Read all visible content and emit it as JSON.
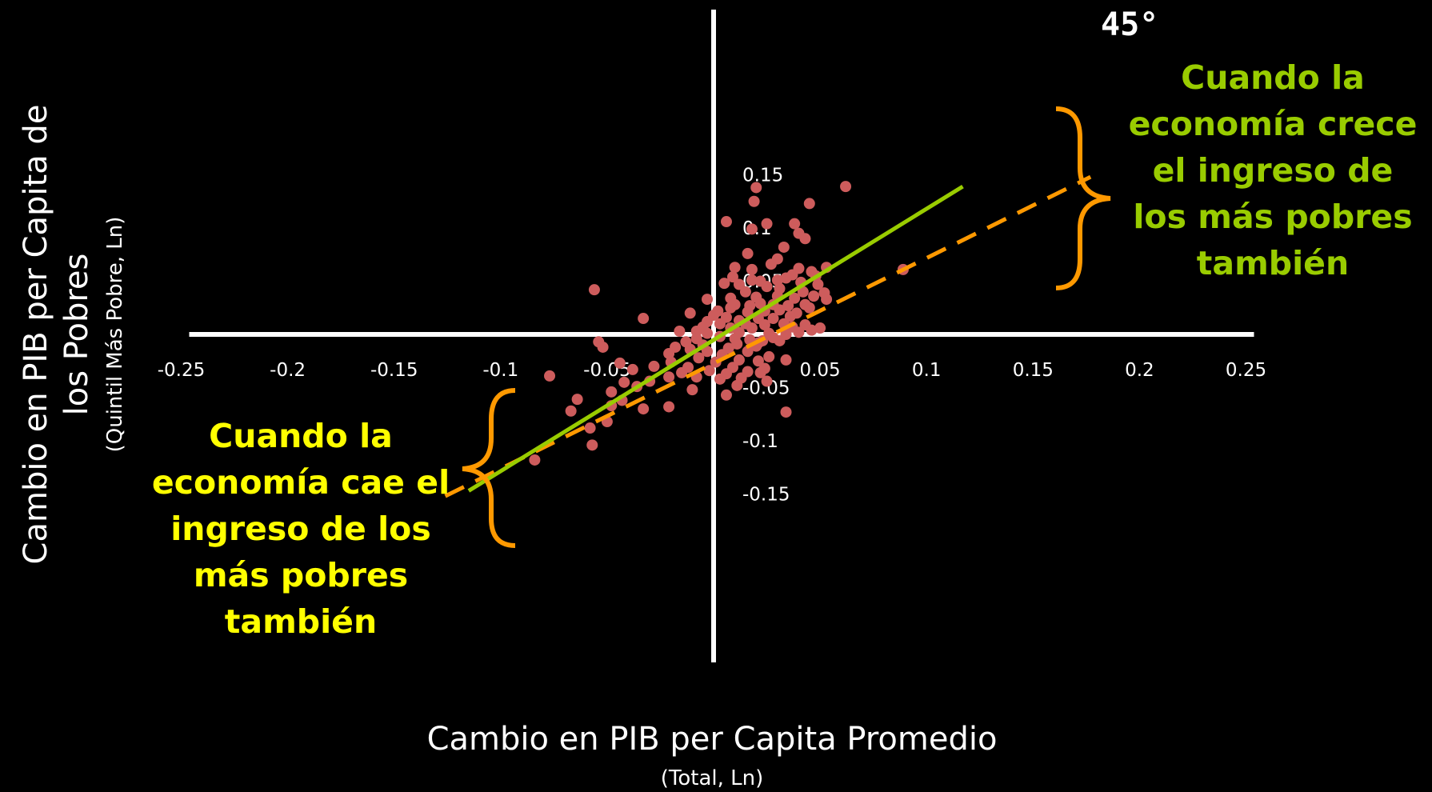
{
  "chart_data": {
    "type": "scatter",
    "title": "",
    "xlabel": "Cambio en PIB per Capita Promedio",
    "xlabel_sub": "(Total, Ln)",
    "ylabel": "Cambio en PIB per Capita de los Pobres",
    "ylabel_sub": "(Quintil Más Pobre, Ln)",
    "xlim": [
      -0.25,
      0.25
    ],
    "ylim": [
      -0.15,
      0.15
    ],
    "grid": false,
    "x_ticks": [
      "-0.25",
      "-0.2",
      "-0.15",
      "-0.1",
      "-0.05",
      "0.05",
      "0.1",
      "0.15",
      "0.2",
      "0.25"
    ],
    "y_ticks": [
      "0.15",
      "0.1",
      "0.05",
      "-0.05",
      "-0.1",
      "-0.15"
    ],
    "colors": {
      "background": "#000000",
      "points": "#cd5c5c",
      "axes": "#ffffff",
      "fit_line": "#99cc00",
      "diagonal_line": "#ff9900",
      "green_text": "#99cc00",
      "yellow_text": "#ffff00"
    },
    "fit_line": {
      "x": [
        -0.115,
        0.117
      ],
      "y": [
        -0.147,
        0.139
      ]
    },
    "diagonal_45": {
      "label": "45°",
      "x": [
        -0.126,
        0.177
      ],
      "y": [
        -0.152,
        0.148
      ]
    },
    "points": [
      [
        0.02,
        0.138
      ],
      [
        0.062,
        0.139
      ],
      [
        0.019,
        0.125
      ],
      [
        0.045,
        0.123
      ],
      [
        0.006,
        0.106
      ],
      [
        0.025,
        0.104
      ],
      [
        0.038,
        0.104
      ],
      [
        0.018,
        0.099
      ],
      [
        0.04,
        0.095
      ],
      [
        0.043,
        0.09
      ],
      [
        0.033,
        0.082
      ],
      [
        0.016,
        0.076
      ],
      [
        0.03,
        0.071
      ],
      [
        0.027,
        0.066
      ],
      [
        0.01,
        0.063
      ],
      [
        0.018,
        0.061
      ],
      [
        0.04,
        0.062
      ],
      [
        0.053,
        0.063
      ],
      [
        0.089,
        0.061
      ],
      [
        0.037,
        0.056
      ],
      [
        0.046,
        0.059
      ],
      [
        0.009,
        0.054
      ],
      [
        0.034,
        0.053
      ],
      [
        0.049,
        0.047
      ],
      [
        0.03,
        0.051
      ],
      [
        0.022,
        0.05
      ],
      [
        0.041,
        0.049
      ],
      [
        0.048,
        0.055
      ],
      [
        0.005,
        0.048
      ],
      [
        0.018,
        0.051
      ],
      [
        0.012,
        0.047
      ],
      [
        0.025,
        0.045
      ],
      [
        0.031,
        0.043
      ],
      [
        0.052,
        0.039
      ],
      [
        0.042,
        0.04
      ],
      [
        0.015,
        0.04
      ],
      [
        -0.056,
        0.042
      ],
      [
        -0.003,
        0.033
      ],
      [
        0.008,
        0.034
      ],
      [
        0.02,
        0.035
      ],
      [
        0.03,
        0.036
      ],
      [
        0.038,
        0.034
      ],
      [
        0.047,
        0.036
      ],
      [
        0.053,
        0.033
      ],
      [
        0.01,
        0.028
      ],
      [
        0.017,
        0.027
      ],
      [
        0.022,
        0.029
      ],
      [
        0.028,
        0.028
      ],
      [
        0.035,
        0.027
      ],
      [
        0.043,
        0.028
      ],
      [
        -0.011,
        0.02
      ],
      [
        0.002,
        0.022
      ],
      [
        0.008,
        0.025
      ],
      [
        0.016,
        0.021
      ],
      [
        0.024,
        0.022
      ],
      [
        0.031,
        0.023
      ],
      [
        0.039,
        0.02
      ],
      [
        0.045,
        0.025
      ],
      [
        0.0,
        0.018
      ],
      [
        0.006,
        0.016
      ],
      [
        0.012,
        0.013
      ],
      [
        0.021,
        0.015
      ],
      [
        0.028,
        0.015
      ],
      [
        0.036,
        0.017
      ],
      [
        -0.003,
        0.012
      ],
      [
        -0.033,
        0.015
      ],
      [
        0.003,
        0.01
      ],
      [
        0.015,
        0.01
      ],
      [
        0.024,
        0.009
      ],
      [
        0.033,
        0.01
      ],
      [
        0.043,
        0.009
      ],
      [
        -0.005,
        0.007
      ],
      [
        0.008,
        0.006
      ],
      [
        0.018,
        0.006
      ],
      [
        0.037,
        0.007
      ],
      [
        0.046,
        0.004
      ],
      [
        0.05,
        0.006
      ],
      [
        -0.016,
        0.003
      ],
      [
        -0.008,
        0.003
      ],
      [
        0.012,
        0.002
      ],
      [
        0.026,
        0.001
      ],
      [
        0.034,
        0.0
      ],
      [
        0.04,
        0.002
      ],
      [
        -0.003,
        0.001
      ],
      [
        0.003,
        -0.002
      ],
      [
        0.01,
        -0.004
      ],
      [
        0.017,
        -0.005
      ],
      [
        0.023,
        -0.006
      ],
      [
        0.031,
        -0.006
      ],
      [
        -0.008,
        -0.004
      ],
      [
        -0.013,
        -0.007
      ],
      [
        0.028,
        -0.003
      ],
      [
        0.021,
        -0.008
      ],
      [
        -0.054,
        -0.007
      ],
      [
        0.011,
        -0.009
      ],
      [
        -0.005,
        -0.01
      ],
      [
        0.02,
        -0.011
      ],
      [
        -0.018,
        -0.012
      ],
      [
        0.007,
        -0.013
      ],
      [
        -0.011,
        -0.014
      ],
      [
        -0.052,
        -0.012
      ],
      [
        -0.003,
        -0.016
      ],
      [
        0.016,
        -0.016
      ],
      [
        -0.021,
        -0.018
      ],
      [
        0.004,
        -0.019
      ],
      [
        0.026,
        -0.021
      ],
      [
        -0.007,
        -0.022
      ],
      [
        0.012,
        -0.024
      ],
      [
        -0.044,
        -0.027
      ],
      [
        -0.02,
        -0.026
      ],
      [
        0.001,
        -0.026
      ],
      [
        0.021,
        -0.025
      ],
      [
        0.034,
        -0.024
      ],
      [
        -0.028,
        -0.03
      ],
      [
        -0.012,
        -0.031
      ],
      [
        0.009,
        -0.031
      ],
      [
        0.024,
        -0.032
      ],
      [
        -0.038,
        -0.033
      ],
      [
        -0.002,
        -0.034
      ],
      [
        0.016,
        -0.035
      ],
      [
        -0.015,
        -0.036
      ],
      [
        0.006,
        -0.037
      ],
      [
        0.022,
        -0.036
      ],
      [
        -0.021,
        -0.04
      ],
      [
        -0.008,
        -0.04
      ],
      [
        0.013,
        -0.041
      ],
      [
        -0.077,
        -0.039
      ],
      [
        0.003,
        -0.042
      ],
      [
        0.025,
        -0.044
      ],
      [
        -0.03,
        -0.044
      ],
      [
        -0.042,
        -0.045
      ],
      [
        -0.036,
        -0.049
      ],
      [
        0.011,
        -0.048
      ],
      [
        -0.01,
        -0.052
      ],
      [
        -0.048,
        -0.054
      ],
      [
        0.006,
        -0.057
      ],
      [
        -0.064,
        -0.061
      ],
      [
        -0.043,
        -0.062
      ],
      [
        -0.048,
        -0.067
      ],
      [
        -0.021,
        -0.068
      ],
      [
        -0.033,
        -0.07
      ],
      [
        -0.067,
        -0.072
      ],
      [
        0.034,
        -0.073
      ],
      [
        -0.05,
        -0.082
      ],
      [
        -0.058,
        -0.088
      ],
      [
        -0.057,
        -0.104
      ],
      [
        -0.084,
        -0.118
      ]
    ],
    "annotations": {
      "top_right": [
        "Cuando la",
        "economía crece",
        "el ingreso de",
        "los más pobres",
        "también"
      ],
      "bottom_left": [
        "Cuando la",
        "economía cae el",
        "ingreso de los",
        "más pobres",
        "también"
      ]
    }
  }
}
